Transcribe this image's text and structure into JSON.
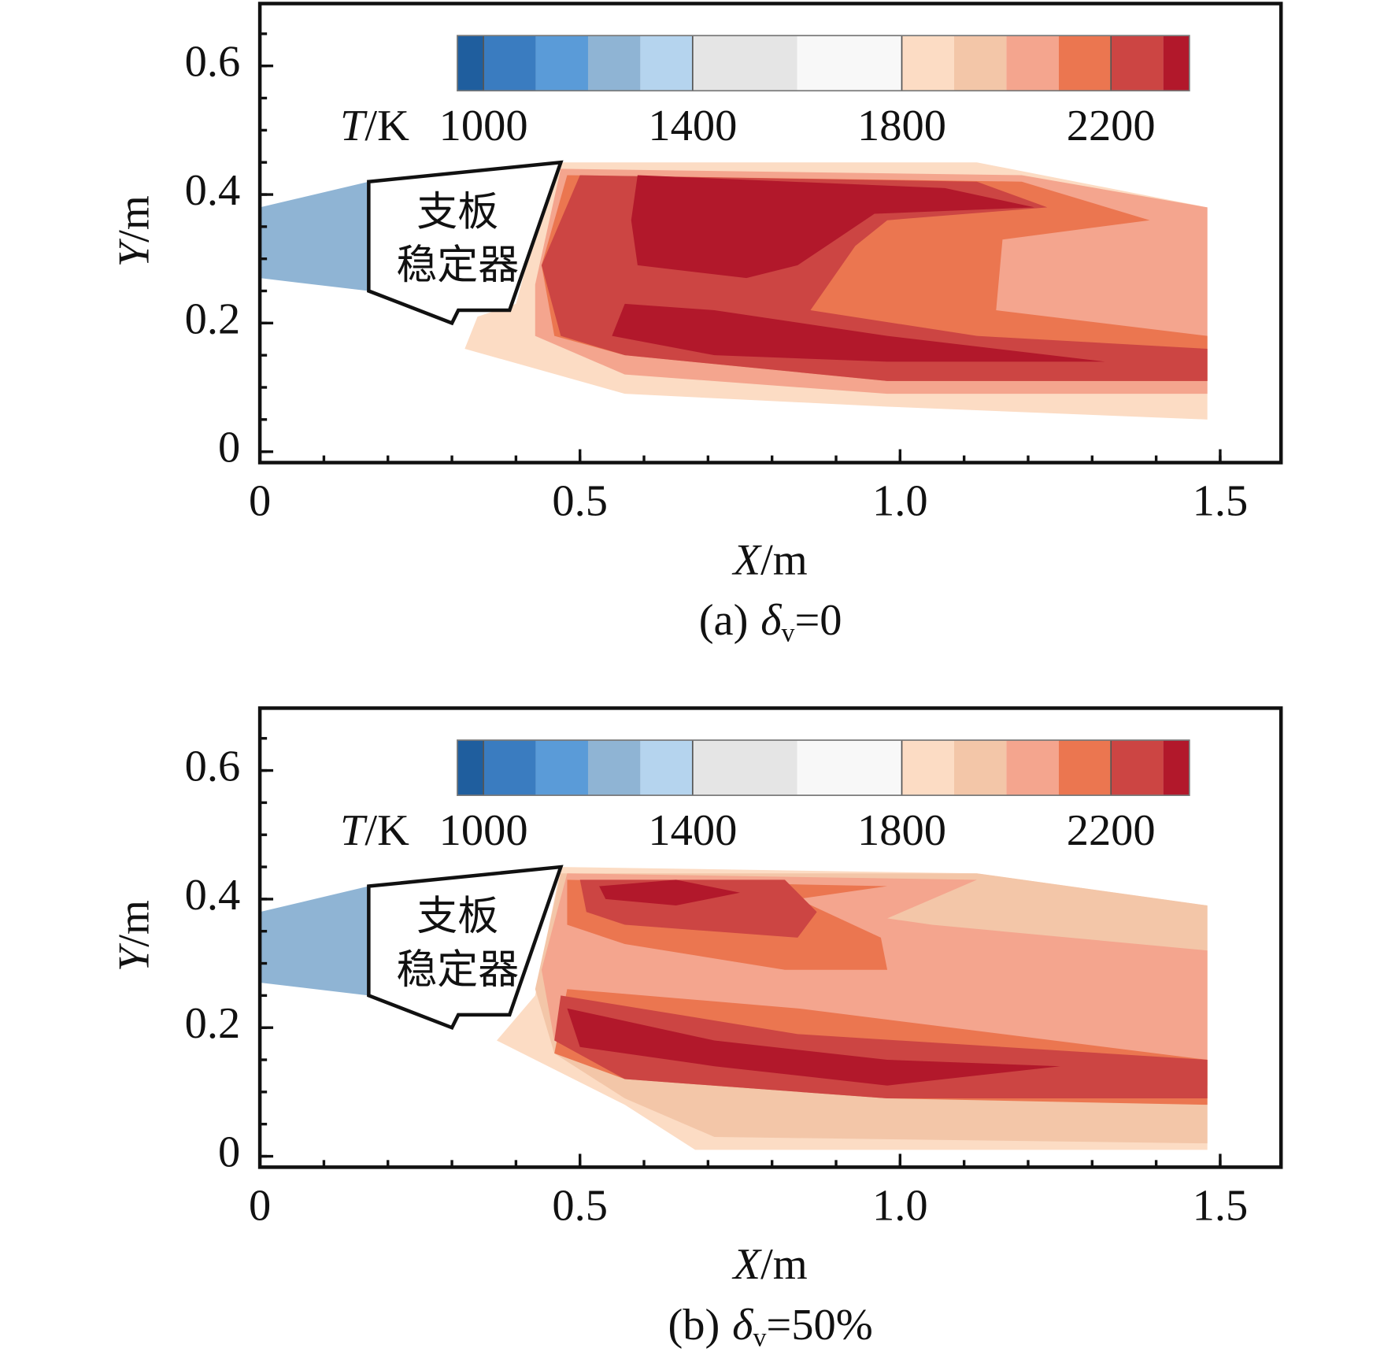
{
  "chart_data": [
    {
      "type": "contour",
      "xlabel_symbol": "X",
      "xlabel_unit": "/m",
      "ylabel_symbol": "Y",
      "ylabel_unit": "/m",
      "caption": {
        "tag": "(a)",
        "symbol": "δ",
        "sub": "v",
        "rest": "=0"
      },
      "xlim": [
        0,
        1.595
      ],
      "ylim": [
        -0.017,
        0.697
      ],
      "xticks": [
        0,
        0.5,
        {
          "value": 1,
          "label": "1.0"
        },
        1.5
      ],
      "yticks": [
        0,
        0.2,
        0.4,
        0.6
      ],
      "xminor": 0.1,
      "yminor": 0.05,
      "colorbar": {
        "label_symbol": "T",
        "label_unit": "/K",
        "levels": [
          950,
          1000,
          1100,
          1200,
          1300,
          1400,
          1600,
          1800,
          1900,
          2000,
          2100,
          2200,
          2300,
          2350
        ],
        "colors": [
          "#1f5e9e",
          "#3a7cc0",
          "#5a9bd8",
          "#8fb4d4",
          "#b5d4ee",
          "#e5e5e5",
          "#f8f8f8",
          "#fcdcc4",
          "#f3c6a8",
          "#f4a58e",
          "#eb7650",
          "#cc4543",
          "#b2182b"
        ],
        "ticks": [
          1000,
          1400,
          1800,
          2200
        ]
      },
      "regions": [
        {
          "T": 1250,
          "x": [
            0,
            0.17,
            0.17,
            0
          ],
          "y": [
            0.38,
            0.42,
            0.25,
            0.27
          ]
        },
        {
          "T": 1850,
          "x": [
            0.46,
            1.12,
            1.48,
            1.48,
            0.98,
            0.57,
            0.32,
            0.34,
            0.4
          ],
          "y": [
            0.45,
            0.45,
            0.38,
            0.05,
            0.07,
            0.09,
            0.16,
            0.21,
            0.23
          ]
        },
        {
          "T": 2050,
          "x": [
            0.47,
            1.19,
            1.48,
            1.48,
            0.98,
            0.57,
            0.43,
            0.43
          ],
          "y": [
            0.44,
            0.43,
            0.38,
            0.09,
            0.09,
            0.12,
            0.18,
            0.26
          ]
        },
        {
          "T": 2150,
          "x": [
            0.48,
            1.19,
            1.39,
            1.16,
            1.15,
            1.48,
            1.48,
            0.98,
            0.57,
            0.46,
            0.44
          ],
          "y": [
            0.43,
            0.42,
            0.36,
            0.33,
            0.22,
            0.18,
            0.11,
            0.11,
            0.15,
            0.18,
            0.29
          ]
        },
        {
          "T": 2250,
          "x": [
            0.5,
            1.12,
            1.23,
            0.98,
            0.93,
            0.86,
            1.12,
            1.48,
            1.48,
            0.98,
            0.57,
            0.47,
            0.44
          ],
          "y": [
            0.43,
            0.42,
            0.38,
            0.36,
            0.32,
            0.22,
            0.18,
            0.16,
            0.11,
            0.11,
            0.15,
            0.18,
            0.29
          ]
        },
        {
          "T": 2320,
          "x": [
            0.59,
            1.07,
            1.21,
            0.96,
            0.9,
            0.84,
            0.76,
            0.59,
            0.58
          ],
          "y": [
            0.43,
            0.41,
            0.38,
            0.37,
            0.33,
            0.29,
            0.27,
            0.29,
            0.36
          ]
        },
        {
          "T": 2320,
          "x": [
            0.57,
            0.71,
            0.98,
            1.32,
            0.98,
            0.71,
            0.55
          ],
          "y": [
            0.23,
            0.22,
            0.18,
            0.14,
            0.14,
            0.15,
            0.18
          ]
        }
      ],
      "stabilizer": {
        "label": [
          "支板",
          "稳定器"
        ],
        "x": [
          0.17,
          0.47,
          0.39,
          0.31,
          0.3,
          0.17
        ],
        "y": [
          0.42,
          0.45,
          0.22,
          0.22,
          0.2,
          0.25
        ]
      }
    },
    {
      "type": "contour",
      "xlabel_symbol": "X",
      "xlabel_unit": "/m",
      "ylabel_symbol": "Y",
      "ylabel_unit": "/m",
      "caption": {
        "tag": "(b)",
        "symbol": "δ",
        "sub": "v",
        "rest": "=50%"
      },
      "xlim": [
        0,
        1.595
      ],
      "ylim": [
        -0.017,
        0.697
      ],
      "xticks": [
        0,
        0.5,
        {
          "value": 1,
          "label": "1.0"
        },
        1.5
      ],
      "yticks": [
        0,
        0.2,
        0.4,
        0.6
      ],
      "xminor": 0.1,
      "yminor": 0.05,
      "colorbar": {
        "label_symbol": "T",
        "label_unit": "/K",
        "levels": [
          950,
          1000,
          1100,
          1200,
          1300,
          1400,
          1600,
          1800,
          1900,
          2000,
          2100,
          2200,
          2300,
          2350
        ],
        "colors": [
          "#1f5e9e",
          "#3a7cc0",
          "#5a9bd8",
          "#8fb4d4",
          "#b5d4ee",
          "#e5e5e5",
          "#f8f8f8",
          "#fcdcc4",
          "#f3c6a8",
          "#f4a58e",
          "#eb7650",
          "#cc4543",
          "#b2182b"
        ],
        "ticks": [
          1000,
          1400,
          1800,
          2200
        ]
      },
      "regions": [
        {
          "T": 1250,
          "x": [
            0,
            0.17,
            0.17,
            0
          ],
          "y": [
            0.38,
            0.42,
            0.25,
            0.27
          ]
        },
        {
          "T": 1850,
          "x": [
            0.47,
            1.12,
            1.48,
            1.48,
            0.68,
            0.57,
            0.43,
            0.37,
            0.43
          ],
          "y": [
            0.45,
            0.44,
            0.39,
            0.01,
            0.01,
            0.08,
            0.15,
            0.18,
            0.25
          ]
        },
        {
          "T": 1950,
          "x": [
            0.47,
            1.12,
            1.48,
            1.48,
            0.71,
            0.57,
            0.46,
            0.43
          ],
          "y": [
            0.44,
            0.44,
            0.39,
            0.02,
            0.03,
            0.09,
            0.16,
            0.26
          ]
        },
        {
          "T": 2050,
          "x": [
            0.48,
            1.12,
            0.98,
            1.05,
            1.48,
            1.48,
            0.98,
            0.57,
            0.46,
            0.44
          ],
          "y": [
            0.44,
            0.43,
            0.37,
            0.36,
            0.32,
            0.11,
            0.12,
            0.15,
            0.18,
            0.29
          ]
        },
        {
          "T": 2150,
          "x": [
            0.48,
            0.98,
            0.84,
            0.97,
            0.98,
            0.82,
            0.57,
            0.48
          ],
          "y": [
            0.43,
            0.42,
            0.4,
            0.34,
            0.29,
            0.29,
            0.33,
            0.36
          ]
        },
        {
          "T": 2150,
          "x": [
            0.48,
            0.84,
            1.48,
            1.48,
            0.98,
            0.57,
            0.46
          ],
          "y": [
            0.26,
            0.23,
            0.15,
            0.08,
            0.09,
            0.12,
            0.16
          ]
        },
        {
          "T": 2250,
          "x": [
            0.5,
            0.82,
            0.87,
            0.84,
            0.57,
            0.51
          ],
          "y": [
            0.43,
            0.43,
            0.38,
            0.34,
            0.36,
            0.38
          ]
        },
        {
          "T": 2250,
          "x": [
            0.47,
            0.84,
            1.48,
            1.48,
            0.98,
            0.57,
            0.46
          ],
          "y": [
            0.25,
            0.19,
            0.15,
            0.09,
            0.09,
            0.12,
            0.18
          ]
        },
        {
          "T": 2320,
          "x": [
            0.53,
            0.65,
            0.75,
            0.65,
            0.54
          ],
          "y": [
            0.42,
            0.43,
            0.41,
            0.39,
            0.4
          ]
        },
        {
          "T": 2320,
          "x": [
            0.48,
            0.71,
            0.98,
            1.25,
            0.98,
            0.71,
            0.5
          ],
          "y": [
            0.23,
            0.18,
            0.15,
            0.14,
            0.11,
            0.14,
            0.17
          ]
        }
      ],
      "stabilizer": {
        "label": [
          "支板",
          "稳定器"
        ],
        "x": [
          0.17,
          0.47,
          0.39,
          0.31,
          0.3,
          0.17
        ],
        "y": [
          0.42,
          0.45,
          0.22,
          0.22,
          0.2,
          0.25
        ]
      }
    }
  ]
}
